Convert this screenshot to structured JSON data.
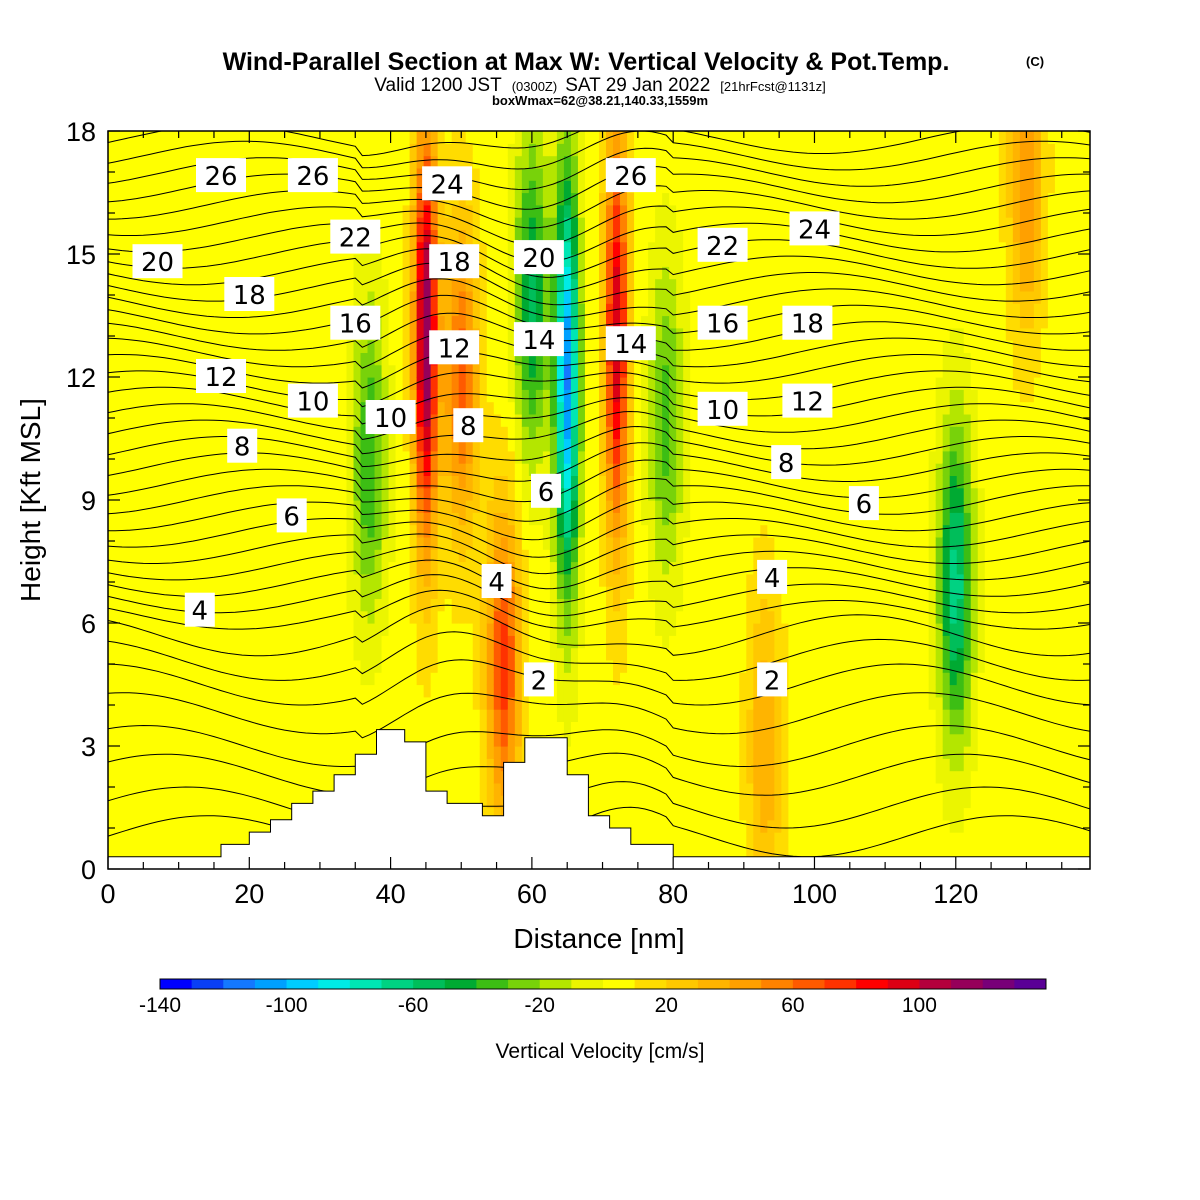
{
  "chart_data": {
    "type": "heatmap",
    "title": "Wind-Parallel Section at Max W: Vertical Velocity & Pot.Temp.",
    "title_mark": "(C)",
    "subtitle": {
      "part1": "Valid 1200 JST",
      "part2": "(0300Z)",
      "part3": "SAT 29 Jan 2022",
      "part4": "[21hrFcst@1131z]"
    },
    "subtitle2": "boxWmax=62@38.21,140.33,1559m",
    "xlabel": "Distance [nm]",
    "ylabel": "Height [Kft MSL]",
    "xlim": [
      0,
      139
    ],
    "ylim": [
      0,
      18
    ],
    "x_ticks": [
      "0",
      "20",
      "40",
      "60",
      "80",
      "100",
      "120"
    ],
    "y_ticks": [
      "0",
      "3",
      "6",
      "9",
      "12",
      "15",
      "18"
    ],
    "grid": false,
    "colorbar": {
      "label": "Vertical Velocity [cm/s]",
      "placement": "bottom",
      "range": [
        -140,
        140
      ],
      "tick_labels": [
        "-140",
        "-100",
        "-60",
        "-20",
        "20",
        "60",
        "100"
      ],
      "colors": [
        "#0000ff",
        "#0a3ff5",
        "#1478ff",
        "#00a0ff",
        "#00ccff",
        "#00ebe6",
        "#00e6b4",
        "#00d282",
        "#00be5a",
        "#00aa32",
        "#3cbe14",
        "#78d20a",
        "#b4e600",
        "#ebf500",
        "#ffff00",
        "#ffdc00",
        "#ffc800",
        "#ffb400",
        "#ffa000",
        "#ff8200",
        "#ff5a00",
        "#ff3200",
        "#ff0000",
        "#dc0014",
        "#b4003c",
        "#96005a",
        "#780078",
        "#5a0096"
      ]
    },
    "velocity_features": [
      {
        "x": 45,
        "z": 13,
        "w": 115
      },
      {
        "x": 50,
        "z": 12,
        "w": 60
      },
      {
        "x": 56,
        "z": 5,
        "w": 70
      },
      {
        "x": 60,
        "z": 14,
        "w": -60
      },
      {
        "x": 65,
        "z": 12,
        "w": -115
      },
      {
        "x": 72,
        "z": 13,
        "w": 95
      },
      {
        "x": 37,
        "z": 10,
        "w": -45
      },
      {
        "x": 79,
        "z": 11,
        "w": -40
      },
      {
        "x": 120,
        "z": 7,
        "w": -70
      },
      {
        "x": 93,
        "z": 3,
        "w": 35
      },
      {
        "x": 130,
        "z": 17,
        "w": 45
      }
    ],
    "terrain_nm_kft": [
      [
        0,
        0.3
      ],
      [
        16,
        0.3
      ],
      [
        16,
        0.6
      ],
      [
        20,
        0.6
      ],
      [
        20,
        0.9
      ],
      [
        23,
        0.9
      ],
      [
        23,
        1.2
      ],
      [
        26,
        1.2
      ],
      [
        26,
        1.6
      ],
      [
        29,
        1.6
      ],
      [
        29,
        1.9
      ],
      [
        32,
        1.9
      ],
      [
        32,
        2.3
      ],
      [
        35,
        2.3
      ],
      [
        35,
        2.8
      ],
      [
        38,
        2.8
      ],
      [
        38,
        3.4
      ],
      [
        42,
        3.4
      ],
      [
        42,
        3.1
      ],
      [
        45,
        3.1
      ],
      [
        45,
        1.9
      ],
      [
        48,
        1.9
      ],
      [
        48,
        1.6
      ],
      [
        53,
        1.6
      ],
      [
        53,
        1.3
      ],
      [
        56,
        1.3
      ],
      [
        56,
        2.6
      ],
      [
        59,
        2.6
      ],
      [
        59,
        3.2
      ],
      [
        65,
        3.2
      ],
      [
        65,
        2.3
      ],
      [
        68,
        2.3
      ],
      [
        68,
        1.3
      ],
      [
        71,
        1.3
      ],
      [
        71,
        1.0
      ],
      [
        74,
        1.0
      ],
      [
        74,
        0.6
      ],
      [
        80,
        0.6
      ],
      [
        80,
        0.3
      ],
      [
        139,
        0.3
      ]
    ],
    "theta_contours": {
      "ylevels_kft": [
        0.8,
        1.5,
        2.3,
        3.0,
        3.8,
        4.5,
        5.1,
        5.7,
        6.2,
        6.6,
        7.0,
        7.4,
        7.8,
        8.2,
        8.6,
        9.0,
        9.4,
        9.8,
        10.2,
        10.6,
        11.0,
        11.4,
        11.8,
        12.2,
        12.6,
        13.0,
        13.4,
        13.8,
        14.2,
        14.6,
        15.0,
        15.4,
        15.8,
        16.2,
        16.6,
        17.0,
        17.4,
        17.8
      ]
    },
    "contour_labels": [
      {
        "text": "26",
        "x": 16,
        "z": 16.9
      },
      {
        "text": "26",
        "x": 29,
        "z": 16.9
      },
      {
        "text": "24",
        "x": 48,
        "z": 16.7
      },
      {
        "text": "26",
        "x": 74,
        "z": 16.9
      },
      {
        "text": "20",
        "x": 7,
        "z": 14.8
      },
      {
        "text": "22",
        "x": 35,
        "z": 15.4
      },
      {
        "text": "18",
        "x": 49,
        "z": 14.8
      },
      {
        "text": "20",
        "x": 61,
        "z": 14.9
      },
      {
        "text": "22",
        "x": 87,
        "z": 15.2
      },
      {
        "text": "24",
        "x": 100,
        "z": 15.6
      },
      {
        "text": "18",
        "x": 20,
        "z": 14.0
      },
      {
        "text": "16",
        "x": 35,
        "z": 13.3
      },
      {
        "text": "12",
        "x": 49,
        "z": 12.7
      },
      {
        "text": "14",
        "x": 61,
        "z": 12.9
      },
      {
        "text": "14",
        "x": 74,
        "z": 12.8
      },
      {
        "text": "16",
        "x": 87,
        "z": 13.3
      },
      {
        "text": "18",
        "x": 99,
        "z": 13.3
      },
      {
        "text": "12",
        "x": 16,
        "z": 12.0
      },
      {
        "text": "10",
        "x": 29,
        "z": 11.4
      },
      {
        "text": "10",
        "x": 40,
        "z": 11.0
      },
      {
        "text": "8",
        "x": 51,
        "z": 10.8
      },
      {
        "text": "10",
        "x": 87,
        "z": 11.2
      },
      {
        "text": "12",
        "x": 99,
        "z": 11.4
      },
      {
        "text": "8",
        "x": 19,
        "z": 10.3
      },
      {
        "text": "6",
        "x": 62,
        "z": 9.2
      },
      {
        "text": "8",
        "x": 96,
        "z": 9.9
      },
      {
        "text": "6",
        "x": 26,
        "z": 8.6
      },
      {
        "text": "6",
        "x": 107,
        "z": 8.9
      },
      {
        "text": "4",
        "x": 55,
        "z": 7.0
      },
      {
        "text": "4",
        "x": 94,
        "z": 7.1
      },
      {
        "text": "4",
        "x": 13,
        "z": 6.3
      },
      {
        "text": "2",
        "x": 61,
        "z": 4.6
      },
      {
        "text": "2",
        "x": 94,
        "z": 4.6
      }
    ]
  }
}
